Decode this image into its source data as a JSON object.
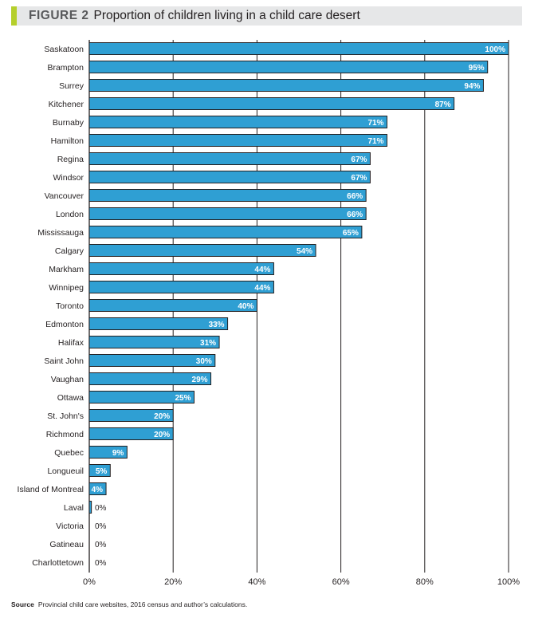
{
  "figure": {
    "label": "FIGURE 2",
    "title": "Proportion of children living in a child care desert"
  },
  "source": {
    "label": "Source",
    "text": "Provincial child care websites, 2016 census and author’s calculations."
  },
  "colors": {
    "bar": "#2f9fd3",
    "bar_outline": "#231f20",
    "grid": "#231f20",
    "header_bg": "#e6e7e8",
    "accent": "#b5cf2c"
  },
  "chart_data": {
    "type": "bar",
    "orientation": "horizontal",
    "title": "Proportion of children living in a child care desert",
    "xlabel": "",
    "ylabel": "",
    "xlim": [
      0,
      100
    ],
    "ticks": [
      "0%",
      "20%",
      "40%",
      "60%",
      "80%",
      "100%"
    ],
    "tick_values": [
      0,
      20,
      40,
      60,
      80,
      100
    ],
    "grid": "vertical",
    "legend": "none",
    "categories": [
      "Saskatoon",
      "Brampton",
      "Surrey",
      "Kitchener",
      "Burnaby",
      "Hamilton",
      "Regina",
      "Windsor",
      "Vancouver",
      "London",
      "Mississauga",
      "Calgary",
      "Markham",
      "Winnipeg",
      "Toronto",
      "Edmonton",
      "Halifax",
      "Saint John",
      "Vaughan",
      "Ottawa",
      "St. John's",
      "Richmond",
      "Quebec",
      "Longueuil",
      "Island of Montreal",
      "Laval",
      "Victoria",
      "Gatineau",
      "Charlottetown"
    ],
    "values": [
      100,
      95,
      94,
      87,
      71,
      71,
      67,
      67,
      66,
      66,
      65,
      54,
      44,
      44,
      40,
      33,
      31,
      30,
      29,
      25,
      20,
      20,
      9,
      5,
      4,
      0.5,
      0,
      0,
      0
    ],
    "labels": [
      "100%",
      "95%",
      "94%",
      "87%",
      "71%",
      "71%",
      "67%",
      "67%",
      "66%",
      "66%",
      "65%",
      "54%",
      "44%",
      "44%",
      "40%",
      "33%",
      "31%",
      "30%",
      "29%",
      "25%",
      "20%",
      "20%",
      "9%",
      "5%",
      "4%",
      "0%",
      "0%",
      "0%",
      "0%"
    ]
  }
}
